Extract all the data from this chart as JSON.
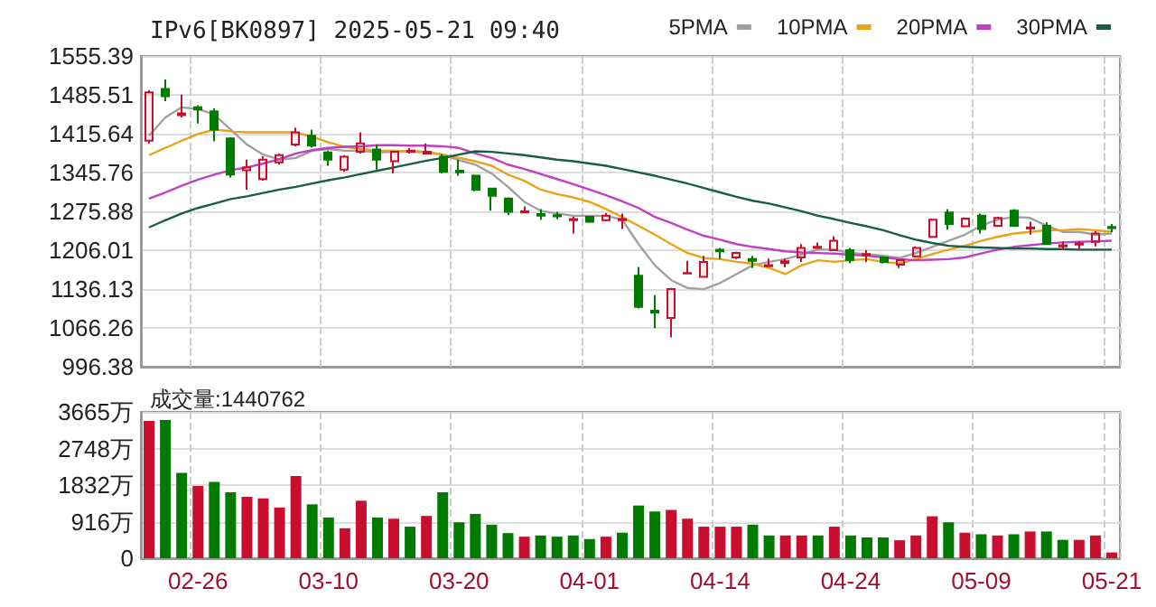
{
  "chart_data": [
    {
      "type": "candlestick",
      "title": "IPv6[BK0897] 2025-05-21 09:40",
      "categories": [
        null,
        null,
        null,
        null,
        null,
        null,
        null,
        null,
        null,
        null,
        null,
        null,
        null,
        null,
        null,
        null,
        null,
        null,
        null,
        null,
        null,
        null,
        null,
        null,
        null,
        null,
        null,
        null,
        null,
        null,
        null,
        null,
        null,
        null,
        null,
        null,
        null,
        null,
        null,
        null,
        null,
        null,
        null,
        null,
        null,
        null,
        null,
        null,
        null,
        null,
        null,
        null,
        null,
        null,
        null,
        null,
        null,
        null,
        null,
        null
      ],
      "ohlc": [
        [
          1403,
          1494,
          1398,
          1490
        ],
        [
          1496,
          1513,
          1474,
          1483
        ],
        [
          1449,
          1486,
          1445,
          1452
        ],
        [
          1463,
          1467,
          1434,
          1459
        ],
        [
          1456,
          1461,
          1402,
          1423
        ],
        [
          1407,
          1409,
          1337,
          1342
        ],
        [
          1350,
          1369,
          1315,
          1355
        ],
        [
          1334,
          1375,
          1331,
          1369
        ],
        [
          1364,
          1380,
          1360,
          1377
        ],
        [
          1396,
          1426,
          1393,
          1418
        ],
        [
          1412,
          1423,
          1391,
          1394
        ],
        [
          1382,
          1385,
          1358,
          1369
        ],
        [
          1351,
          1377,
          1347,
          1374
        ],
        [
          1383,
          1418,
          1380,
          1398
        ],
        [
          1387,
          1396,
          1351,
          1369
        ],
        [
          1366,
          1385,
          1344,
          1383
        ],
        [
          1383,
          1390,
          1380,
          1385
        ],
        [
          1380,
          1398,
          1380,
          1383
        ],
        [
          1374,
          1379,
          1344,
          1347
        ],
        [
          1349,
          1369,
          1340,
          1346
        ],
        [
          1340,
          1342,
          1312,
          1315
        ],
        [
          1317,
          1318,
          1277,
          1304
        ],
        [
          1299,
          1301,
          1269,
          1275
        ],
        [
          1274,
          1285,
          1273,
          1276
        ],
        [
          1271,
          1280,
          1261,
          1268
        ],
        [
          1269,
          1275,
          1262,
          1267
        ],
        [
          1260,
          1266,
          1236,
          1262
        ],
        [
          1266,
          1268,
          1255,
          1257
        ],
        [
          1260,
          1273,
          1258,
          1268
        ],
        [
          1260,
          1272,
          1244,
          1262
        ],
        [
          1160,
          1176,
          1101,
          1104
        ],
        [
          1097,
          1125,
          1066,
          1094
        ],
        [
          1084,
          1138,
          1049,
          1136
        ],
        [
          1164,
          1187,
          1164,
          1165
        ],
        [
          1158,
          1196,
          1157,
          1185
        ],
        [
          1207,
          1210,
          1190,
          1204
        ],
        [
          1193,
          1203,
          1190,
          1201
        ],
        [
          1190,
          1196,
          1174,
          1187
        ],
        [
          1177,
          1191,
          1177,
          1179
        ],
        [
          1183,
          1191,
          1175,
          1186
        ],
        [
          1193,
          1217,
          1185,
          1210
        ],
        [
          1210,
          1220,
          1210,
          1212
        ],
        [
          1206,
          1231,
          1206,
          1223
        ],
        [
          1206,
          1210,
          1183,
          1188
        ],
        [
          1197,
          1206,
          1185,
          1199
        ],
        [
          1193,
          1195,
          1182,
          1185
        ],
        [
          1180,
          1189,
          1174,
          1188
        ],
        [
          1195,
          1213,
          1193,
          1210
        ],
        [
          1230,
          1263,
          1228,
          1261
        ],
        [
          1274,
          1280,
          1243,
          1253
        ],
        [
          1249,
          1265,
          1247,
          1263
        ],
        [
          1268,
          1272,
          1236,
          1244
        ],
        [
          1250,
          1266,
          1248,
          1264
        ],
        [
          1277,
          1280,
          1248,
          1250
        ],
        [
          1245,
          1257,
          1234,
          1247
        ],
        [
          1250,
          1256,
          1216,
          1217
        ],
        [
          1213,
          1222,
          1207,
          1215
        ],
        [
          1216,
          1222,
          1207,
          1218
        ],
        [
          1221,
          1240,
          1213,
          1236
        ],
        [
          1248,
          1253,
          1238,
          1246
        ]
      ],
      "colors": [
        "#c8102e",
        "#007b00",
        "#c8102e",
        "#007b00",
        "#007b00",
        "#007b00",
        "#c8102e",
        "#c8102e",
        "#c8102e",
        "#c8102e",
        "#007b00",
        "#007b00",
        "#c8102e",
        "#c8102e",
        "#007b00",
        "#c8102e",
        "#c8102e",
        "#c8102e",
        "#007b00",
        "#007b00",
        "#007b00",
        "#007b00",
        "#007b00",
        "#c8102e",
        "#007b00",
        "#007b00",
        "#c8102e",
        "#007b00",
        "#c8102e",
        "#c8102e",
        "#007b00",
        "#007b00",
        "#c8102e",
        "#c8102e",
        "#c8102e",
        "#007b00",
        "#c8102e",
        "#007b00",
        "#c8102e",
        "#c8102e",
        "#c8102e",
        "#c8102e",
        "#c8102e",
        "#007b00",
        "#c8102e",
        "#007b00",
        "#c8102e",
        "#c8102e",
        "#c8102e",
        "#007b00",
        "#c8102e",
        "#007b00",
        "#c8102e",
        "#007b00",
        "#c8102e",
        "#007b00",
        "#c8102e",
        "#c8102e",
        "#c8102e",
        "#007b00"
      ],
      "series": [
        {
          "type": "line",
          "name": "5PMA",
          "color": "#a0a0a0",
          "values": [
            1412,
            1445,
            1463,
            1460,
            1450,
            1423,
            1396,
            1378,
            1369,
            1372,
            1385,
            1388,
            1385,
            1385,
            1382,
            1383,
            1385,
            1383,
            1378,
            1368,
            1360,
            1344,
            1320,
            1293,
            1277,
            1272,
            1268,
            1268,
            1268,
            1261,
            1217,
            1179,
            1152,
            1138,
            1136,
            1147,
            1163,
            1179,
            1185,
            1190,
            1198,
            1207,
            1207,
            1201,
            1199,
            1196,
            1192,
            1201,
            1212,
            1223,
            1234,
            1250,
            1261,
            1266,
            1264,
            1250,
            1239,
            1239,
            1234,
            1236
          ]
        },
        {
          "type": "line",
          "name": "10PMA",
          "color": "#e8a317",
          "values": [
            1377,
            1390,
            1403,
            1415,
            1423,
            1420,
            1418,
            1418,
            1418,
            1418,
            1410,
            1400,
            1392,
            1388,
            1385,
            1385,
            1383,
            1382,
            1378,
            1372,
            1366,
            1358,
            1342,
            1331,
            1315,
            1307,
            1301,
            1293,
            1280,
            1266,
            1250,
            1234,
            1217,
            1201,
            1192,
            1190,
            1185,
            1182,
            1174,
            1163,
            1179,
            1188,
            1185,
            1188,
            1190,
            1185,
            1182,
            1190,
            1199,
            1207,
            1214,
            1223,
            1230,
            1236,
            1239,
            1242,
            1242,
            1244,
            1242,
            1239
          ]
        },
        {
          "type": "line",
          "name": "20PMA",
          "color": "#c040c0",
          "values": [
            1299,
            1310,
            1322,
            1333,
            1342,
            1350,
            1355,
            1362,
            1370,
            1380,
            1386,
            1390,
            1392,
            1393,
            1395,
            1395,
            1394,
            1394,
            1393,
            1390,
            1380,
            1372,
            1360,
            1352,
            1343,
            1334,
            1325,
            1315,
            1305,
            1294,
            1282,
            1266,
            1255,
            1243,
            1232,
            1225,
            1217,
            1212,
            1208,
            1204,
            1202,
            1201,
            1200,
            1198,
            1196,
            1193,
            1190,
            1188,
            1189,
            1190,
            1193,
            1200,
            1207,
            1212,
            1215,
            1218,
            1220,
            1221,
            1222,
            1223
          ]
        },
        {
          "type": "line",
          "name": "30PMA",
          "color": "#1a5c4a",
          "values": [
            1247,
            1260,
            1272,
            1282,
            1290,
            1298,
            1303,
            1309,
            1315,
            1320,
            1326,
            1332,
            1337,
            1343,
            1349,
            1355,
            1361,
            1367,
            1372,
            1378,
            1384,
            1383,
            1380,
            1377,
            1373,
            1369,
            1366,
            1362,
            1358,
            1352,
            1346,
            1340,
            1333,
            1326,
            1318,
            1310,
            1302,
            1295,
            1290,
            1283,
            1276,
            1268,
            1262,
            1255,
            1249,
            1242,
            1233,
            1225,
            1219,
            1214,
            1212,
            1211,
            1210,
            1209,
            1209,
            1208,
            1208,
            1207,
            1207,
            1207
          ]
        }
      ],
      "ylim": [
        996.38,
        1555.39
      ],
      "yticks": [
        996.38,
        1066.26,
        1136.13,
        1206.01,
        1275.88,
        1345.76,
        1415.64,
        1485.51,
        1555.39
      ],
      "grid": true,
      "legend": "top right",
      "marker": "none",
      "tick_labels": "y"
    },
    {
      "type": "bar",
      "title": "成交量:1440762",
      "categories": [
        null,
        null,
        null,
        "02-26",
        null,
        null,
        null,
        null,
        null,
        null,
        null,
        "03-10",
        null,
        null,
        null,
        null,
        null,
        null,
        null,
        "03-20",
        null,
        null,
        null,
        null,
        null,
        null,
        null,
        "04-01",
        null,
        null,
        null,
        null,
        null,
        null,
        null,
        "04-14",
        null,
        null,
        null,
        null,
        null,
        null,
        null,
        "04-24",
        null,
        null,
        null,
        null,
        null,
        null,
        null,
        "05-09",
        null,
        null,
        null,
        null,
        null,
        null,
        null,
        "05-21"
      ],
      "values": [
        3440,
        3460,
        2140,
        1810,
        1910,
        1650,
        1540,
        1500,
        1270,
        2060,
        1350,
        1020,
        750,
        1440,
        1020,
        990,
        790,
        1060,
        1650,
        900,
        1110,
        840,
        630,
        540,
        570,
        540,
        570,
        480,
        540,
        640,
        1320,
        1170,
        1210,
        990,
        790,
        790,
        790,
        840,
        570,
        570,
        570,
        570,
        790,
        570,
        520,
        520,
        450,
        570,
        1050,
        900,
        640,
        600,
        570,
        600,
        670,
        670,
        460,
        460,
        570,
        144
      ],
      "colors": [
        "#c8102e",
        "#007b00",
        "#007b00",
        "#c8102e",
        "#007b00",
        "#007b00",
        "#c8102e",
        "#c8102e",
        "#c8102e",
        "#c8102e",
        "#007b00",
        "#007b00",
        "#c8102e",
        "#c8102e",
        "#007b00",
        "#c8102e",
        "#007b00",
        "#c8102e",
        "#007b00",
        "#007b00",
        "#007b00",
        "#007b00",
        "#007b00",
        "#c8102e",
        "#007b00",
        "#007b00",
        "#007b00",
        "#007b00",
        "#c8102e",
        "#007b00",
        "#007b00",
        "#007b00",
        "#c8102e",
        "#c8102e",
        "#c8102e",
        "#c8102e",
        "#c8102e",
        "#007b00",
        "#007b00",
        "#c8102e",
        "#c8102e",
        "#007b00",
        "#c8102e",
        "#007b00",
        "#007b00",
        "#007b00",
        "#c8102e",
        "#c8102e",
        "#c8102e",
        "#007b00",
        "#c8102e",
        "#007b00",
        "#c8102e",
        "#007b00",
        "#c8102e",
        "#007b00",
        "#007b00",
        "#c8102e",
        "#c8102e",
        "#c8102e"
      ],
      "ylim": [
        0,
        3665
      ],
      "yticks": [
        0,
        {
          "value": 916,
          "label": "916万"
        },
        {
          "value": 1832,
          "label": "1832万"
        },
        {
          "value": 2748,
          "label": "2748万"
        },
        {
          "value": 3665,
          "label": "3665万"
        }
      ],
      "grid": true
    }
  ]
}
